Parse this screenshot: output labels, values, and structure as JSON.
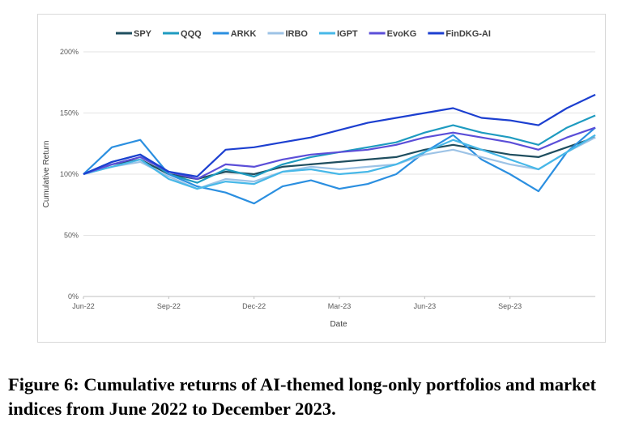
{
  "figure": {
    "caption": "Figure 6: Cumulative returns of AI-themed long-only portfolios and market indices from June 2022 to December 2023."
  },
  "chart_data": {
    "type": "line",
    "title": "",
    "xlabel": "Date",
    "ylabel": "Cumulative Return",
    "x_ticks": [
      "Jun-22",
      "Sep-22",
      "Dec-22",
      "Mar-23",
      "Jun-23",
      "Sep-23"
    ],
    "y_ticks": [
      "0%",
      "50%",
      "100%",
      "150%",
      "200%"
    ],
    "ylim": [
      0,
      200
    ],
    "grid": "horizontal",
    "legend_position": "top",
    "x": [
      "2022-06",
      "2022-07",
      "2022-08",
      "2022-09",
      "2022-10",
      "2022-11",
      "2022-12",
      "2023-01",
      "2023-02",
      "2023-03",
      "2023-04",
      "2023-05",
      "2023-06",
      "2023-07",
      "2023-08",
      "2023-09",
      "2023-10",
      "2023-11",
      "2023-12"
    ],
    "series": [
      {
        "name": "SPY",
        "color": "#1f4e5f",
        "values": [
          100,
          108,
          112,
          100,
          96,
          102,
          100,
          106,
          108,
          110,
          112,
          114,
          120,
          124,
          120,
          116,
          114,
          122,
          130
        ]
      },
      {
        "name": "QQQ",
        "color": "#1e9bc0",
        "values": [
          100,
          110,
          116,
          100,
          93,
          104,
          98,
          108,
          114,
          118,
          122,
          126,
          134,
          140,
          134,
          130,
          124,
          138,
          148
        ]
      },
      {
        "name": "ARKK",
        "color": "#2b8fe0",
        "values": [
          100,
          122,
          128,
          100,
          90,
          85,
          76,
          90,
          95,
          88,
          92,
          100,
          118,
          132,
          112,
          100,
          86,
          118,
          138
        ]
      },
      {
        "name": "IRBO",
        "color": "#9dc3e6",
        "values": [
          100,
          106,
          110,
          98,
          88,
          96,
          94,
          102,
          106,
          104,
          106,
          108,
          116,
          120,
          114,
          108,
          104,
          118,
          130
        ]
      },
      {
        "name": "IGPT",
        "color": "#47b8e8",
        "values": [
          100,
          106,
          112,
          96,
          88,
          94,
          92,
          102,
          104,
          100,
          102,
          108,
          118,
          128,
          120,
          112,
          104,
          118,
          132
        ]
      },
      {
        "name": "EvoKG",
        "color": "#5b4ed8",
        "values": [
          100,
          108,
          114,
          102,
          96,
          108,
          106,
          112,
          116,
          118,
          120,
          124,
          130,
          134,
          130,
          126,
          120,
          130,
          138
        ]
      },
      {
        "name": "FinDKG-AI",
        "color": "#1c3fd0",
        "values": [
          100,
          110,
          116,
          102,
          98,
          120,
          122,
          126,
          130,
          136,
          142,
          146,
          150,
          154,
          146,
          144,
          140,
          154,
          165
        ]
      }
    ]
  }
}
